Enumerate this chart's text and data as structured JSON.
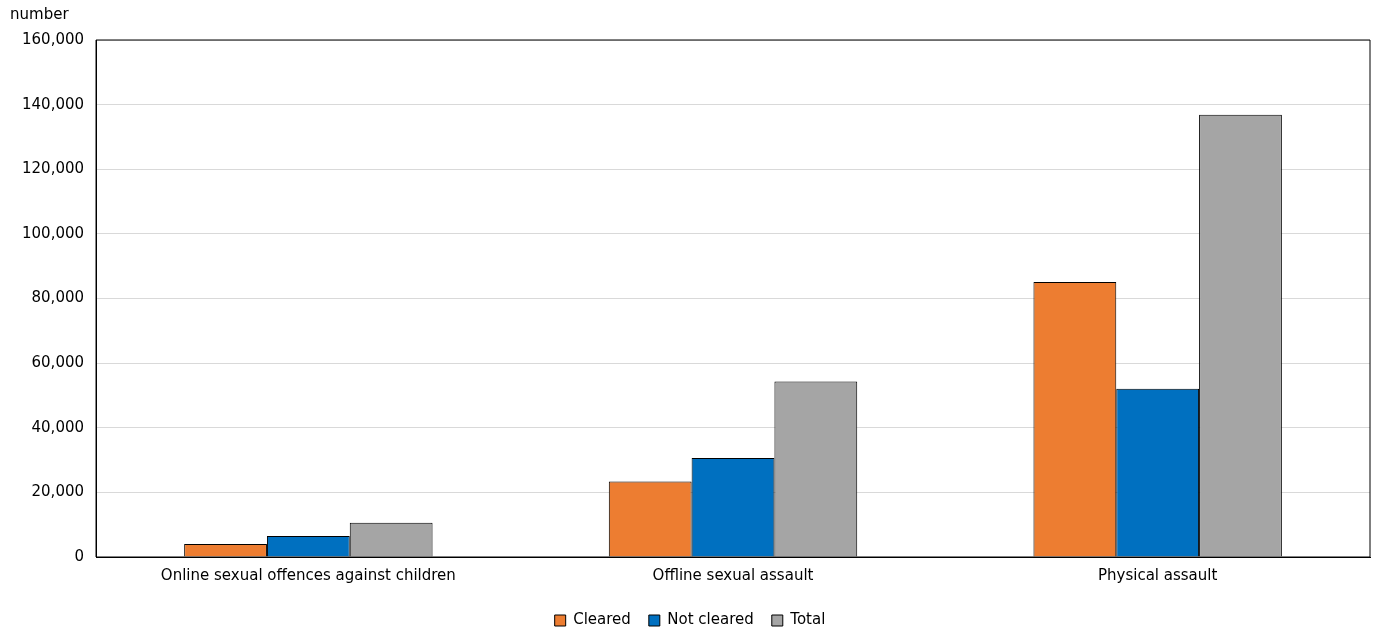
{
  "chart_data": {
    "type": "bar",
    "ylabel": "number",
    "categories": [
      "Online sexual offences against children",
      "Offline sexual assault",
      "Physical assault"
    ],
    "series": [
      {
        "name": "Cleared",
        "color": "#ed7d31",
        "values": [
          4000,
          23400,
          85100
        ]
      },
      {
        "name": "Not cleared",
        "color": "#0070c0",
        "values": [
          6500,
          30600,
          52100
        ]
      },
      {
        "name": "Total",
        "color": "#a5a5a5",
        "values": [
          10600,
          54300,
          136900
        ]
      }
    ],
    "ylim": [
      0,
      160000
    ],
    "yticks": [
      0,
      {
        "value": 20000,
        "label": "20,000"
      },
      {
        "value": 40000,
        "label": "40,000"
      },
      {
        "value": 60000,
        "label": "60,000"
      },
      {
        "value": 80000,
        "label": "80,000"
      },
      {
        "value": 100000,
        "label": "100,000"
      },
      {
        "value": 120000,
        "label": "120,000"
      },
      {
        "value": 140000,
        "label": "140,000"
      },
      {
        "value": 160000,
        "label": "160,000"
      }
    ],
    "grid": "y",
    "legend": "bottom"
  }
}
